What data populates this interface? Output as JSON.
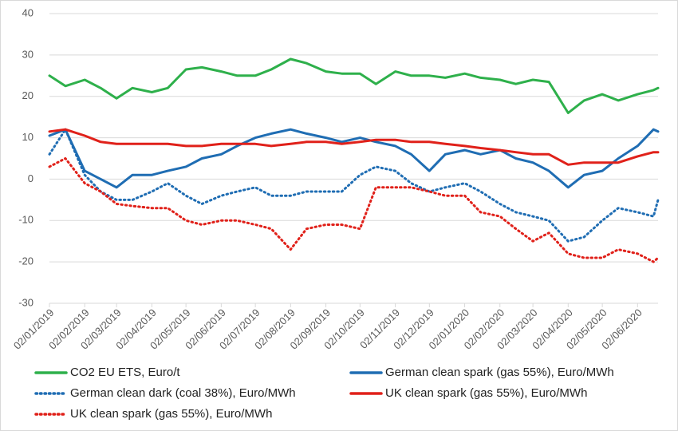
{
  "chart_data": {
    "type": "line",
    "x": [
      "02/01/2019",
      "16/01/2019",
      "02/02/2019",
      "16/02/2019",
      "02/03/2019",
      "16/03/2019",
      "02/04/2019",
      "16/04/2019",
      "02/05/2019",
      "16/05/2019",
      "02/06/2019",
      "16/06/2019",
      "02/07/2019",
      "16/07/2019",
      "02/08/2019",
      "16/08/2019",
      "02/09/2019",
      "16/09/2019",
      "02/10/2019",
      "16/10/2019",
      "02/11/2019",
      "16/11/2019",
      "02/12/2019",
      "16/12/2019",
      "02/01/2020",
      "16/01/2020",
      "02/02/2020",
      "16/02/2020",
      "02/03/2020",
      "16/03/2020",
      "02/04/2020",
      "16/04/2020",
      "02/05/2020",
      "16/05/2020",
      "02/06/2020",
      "16/06/2020",
      "20/06/2020"
    ],
    "xlim": [
      "02/01/2019",
      "20/06/2020"
    ],
    "xticks": [
      "02/01/2019",
      "02/02/2019",
      "02/03/2019",
      "02/04/2019",
      "02/05/2019",
      "02/06/2019",
      "02/07/2019",
      "02/08/2019",
      "02/09/2019",
      "02/10/2019",
      "02/11/2019",
      "02/12/2019",
      "02/01/2020",
      "02/02/2020",
      "02/03/2020",
      "02/04/2020",
      "02/05/2020",
      "02/06/2020"
    ],
    "ylim": [
      -30,
      40
    ],
    "yticks": [
      -30,
      -20,
      -10,
      0,
      10,
      20,
      30,
      40
    ],
    "grid": true,
    "legend": "bottom",
    "series": [
      {
        "name": "CO2 EU ETS, Euro/t",
        "color": "#2eb04b",
        "style": "solid",
        "values": [
          25,
          22.5,
          24,
          22,
          19.5,
          22,
          21,
          22,
          26.5,
          27,
          26,
          25,
          25,
          26.5,
          29,
          28,
          26,
          25.5,
          25.5,
          23,
          26,
          25,
          25,
          24.5,
          25.5,
          24.5,
          24,
          23,
          24,
          23.5,
          16,
          19,
          20.5,
          19,
          20.5,
          21.5,
          22
        ]
      },
      {
        "name": "German clean spark (gas 55%), Euro/MWh",
        "color": "#1f6db3",
        "style": "solid",
        "values": [
          10.5,
          12,
          2,
          0,
          -2,
          1,
          1,
          2,
          3,
          5,
          6,
          8,
          10,
          11,
          12,
          11,
          10,
          9,
          10,
          9,
          8,
          6,
          2,
          6,
          7,
          6,
          7,
          5,
          4,
          2,
          -2,
          1,
          2,
          5,
          8,
          12,
          11.5
        ]
      },
      {
        "name": "German clean dark (coal 38%), Euro/MWh",
        "color": "#1f6db3",
        "style": "dotted",
        "values": [
          6,
          12,
          1,
          -3,
          -5,
          -5,
          -3,
          -1,
          -4,
          -6,
          -4,
          -3,
          -2,
          -4,
          -4,
          -3,
          -3,
          -3,
          1,
          3,
          2,
          -1,
          -3,
          -2,
          -1,
          -3,
          -6,
          -8,
          -9,
          -10,
          -15,
          -14,
          -10,
          -7,
          -8,
          -9,
          -5
        ]
      },
      {
        "name": "UK clean spark (gas 55%), Euro/MWh",
        "color": "#e0211a",
        "style": "solid",
        "values": [
          11.5,
          12,
          10.5,
          9,
          8.5,
          8.5,
          8.5,
          8.5,
          8,
          8,
          8.5,
          8.5,
          8.5,
          8,
          8.5,
          9,
          9,
          8.5,
          9,
          9.5,
          9.5,
          9,
          9,
          8.5,
          8,
          7.5,
          7,
          6.5,
          6,
          6,
          3.5,
          4,
          4,
          4,
          5.5,
          6.5,
          6.5
        ]
      },
      {
        "name": "UK clean spark (gas 55%), Euro/MWh",
        "color": "#e0211a",
        "style": "dotted",
        "values": [
          3,
          5,
          -1,
          -3,
          -6,
          -6.5,
          -7,
          -7,
          -10,
          -11,
          -10,
          -10,
          -11,
          -12,
          -17,
          -12,
          -11,
          -11,
          -12,
          -2,
          -2,
          -2,
          -3,
          -4,
          -4,
          -8,
          -9,
          -12,
          -15,
          -13,
          -18,
          -19,
          -19,
          -17,
          -18,
          -20,
          -19
        ]
      }
    ]
  }
}
